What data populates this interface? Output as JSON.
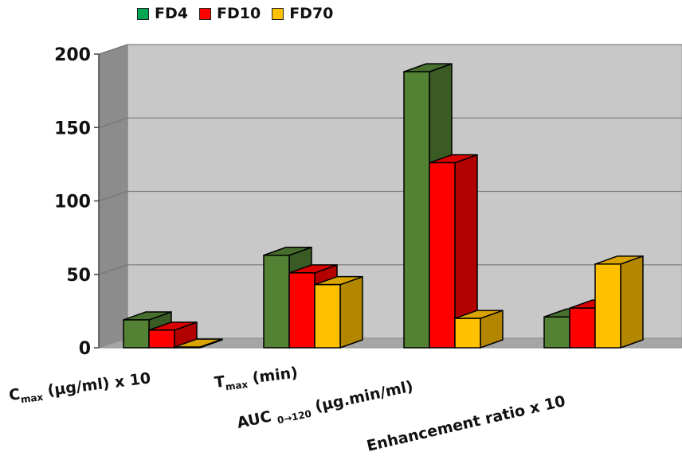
{
  "chart_data": {
    "type": "bar",
    "title": "",
    "xlabel": "",
    "ylabel": "",
    "ylim": [
      0,
      200
    ],
    "yticks": [
      "0",
      "50",
      "100",
      "150",
      "200"
    ],
    "grid": true,
    "legend_placement": "top-left",
    "categories": [
      {
        "main": "C",
        "sub": "max",
        "rest": " (µg/ml) x 10"
      },
      {
        "main": "T",
        "sub": "max",
        "rest": " (min)"
      },
      {
        "main": "AUC ",
        "sub": "0→120",
        "rest": " (µg.min/ml)"
      },
      {
        "main": "Enhancement ratio x 10",
        "sub": "",
        "rest": ""
      }
    ],
    "series": [
      {
        "name": "FD4",
        "color": "#548235",
        "values": [
          19,
          63,
          188,
          21
        ]
      },
      {
        "name": "FD10",
        "color": "#ff0000",
        "values": [
          12,
          51,
          126,
          27
        ]
      },
      {
        "name": "FD70",
        "color": "#ffc000",
        "values": [
          0.5,
          43,
          20,
          57
        ]
      }
    ]
  }
}
